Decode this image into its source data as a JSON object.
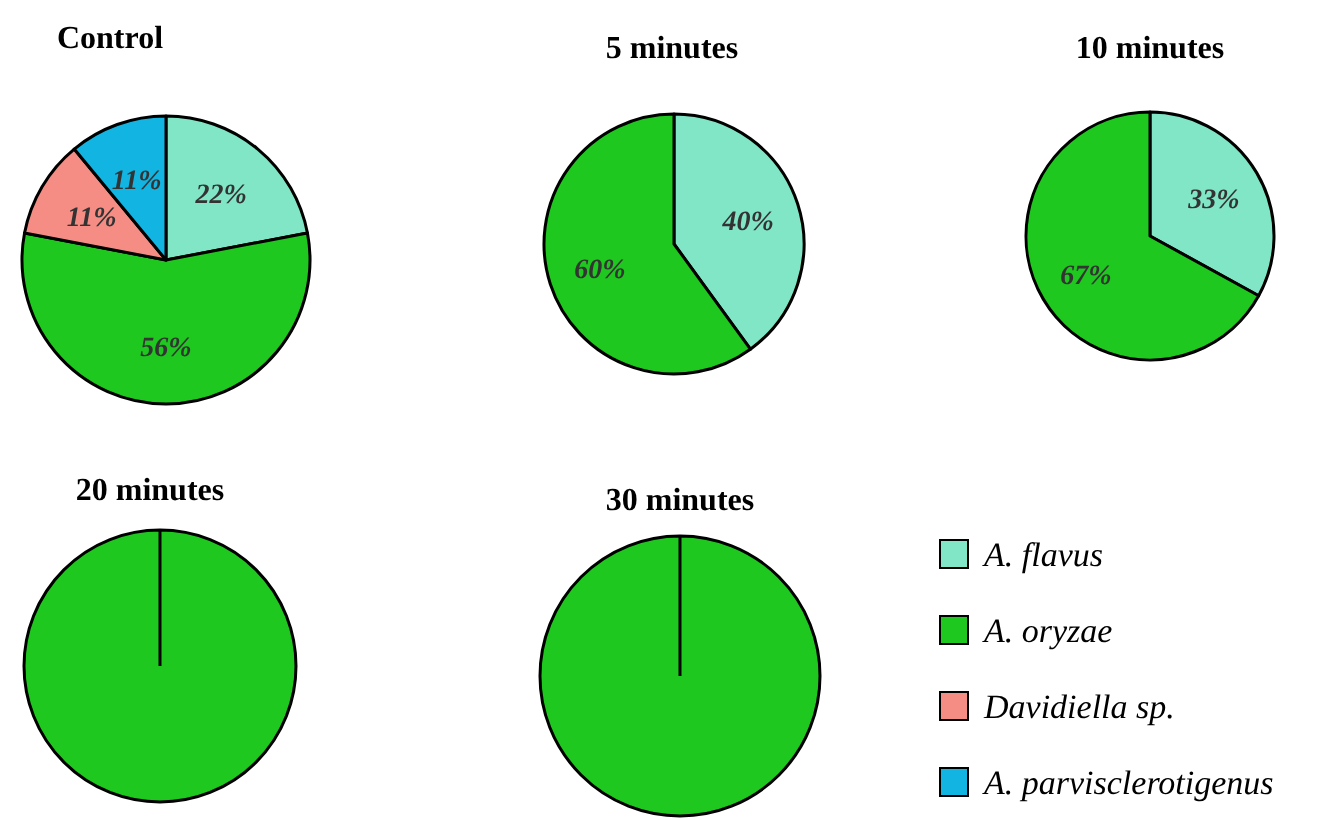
{
  "chart_data": [
    {
      "type": "pie",
      "title": "Control",
      "categories": [
        "A. flavus",
        "A. oryzae",
        "Davidiella sp.",
        "A. parvisclerotigenus"
      ],
      "values": [
        22,
        56,
        11,
        11
      ],
      "colors": [
        "#80e6c6",
        "#1ec81e",
        "#f58d85",
        "#12b5e2"
      ],
      "value_labels": [
        "22%",
        "56%",
        "11%",
        "11%"
      ],
      "legend": "bottom right"
    },
    {
      "type": "pie",
      "title": "5 minutes",
      "categories": [
        null,
        null
      ],
      "values": [
        40,
        60
      ],
      "colors": [
        "#80e6c6",
        "#1ec81e"
      ],
      "value_labels": [
        "40%",
        "60%"
      ]
    },
    {
      "type": "pie",
      "title": "10 minutes",
      "categories": [
        null,
        null
      ],
      "values": [
        33,
        67
      ],
      "colors": [
        "#80e6c6",
        "#1ec81e"
      ],
      "value_labels": [
        "33%",
        "67%"
      ]
    },
    {
      "type": "pie",
      "title": "20 minutes",
      "categories": [
        null
      ],
      "values": [
        100
      ],
      "colors": [
        "#1ec81e"
      ]
    },
    {
      "type": "pie",
      "title": "30 minutes",
      "categories": [
        null
      ],
      "values": [
        100
      ],
      "colors": [
        "#1ec81e"
      ]
    }
  ]
}
